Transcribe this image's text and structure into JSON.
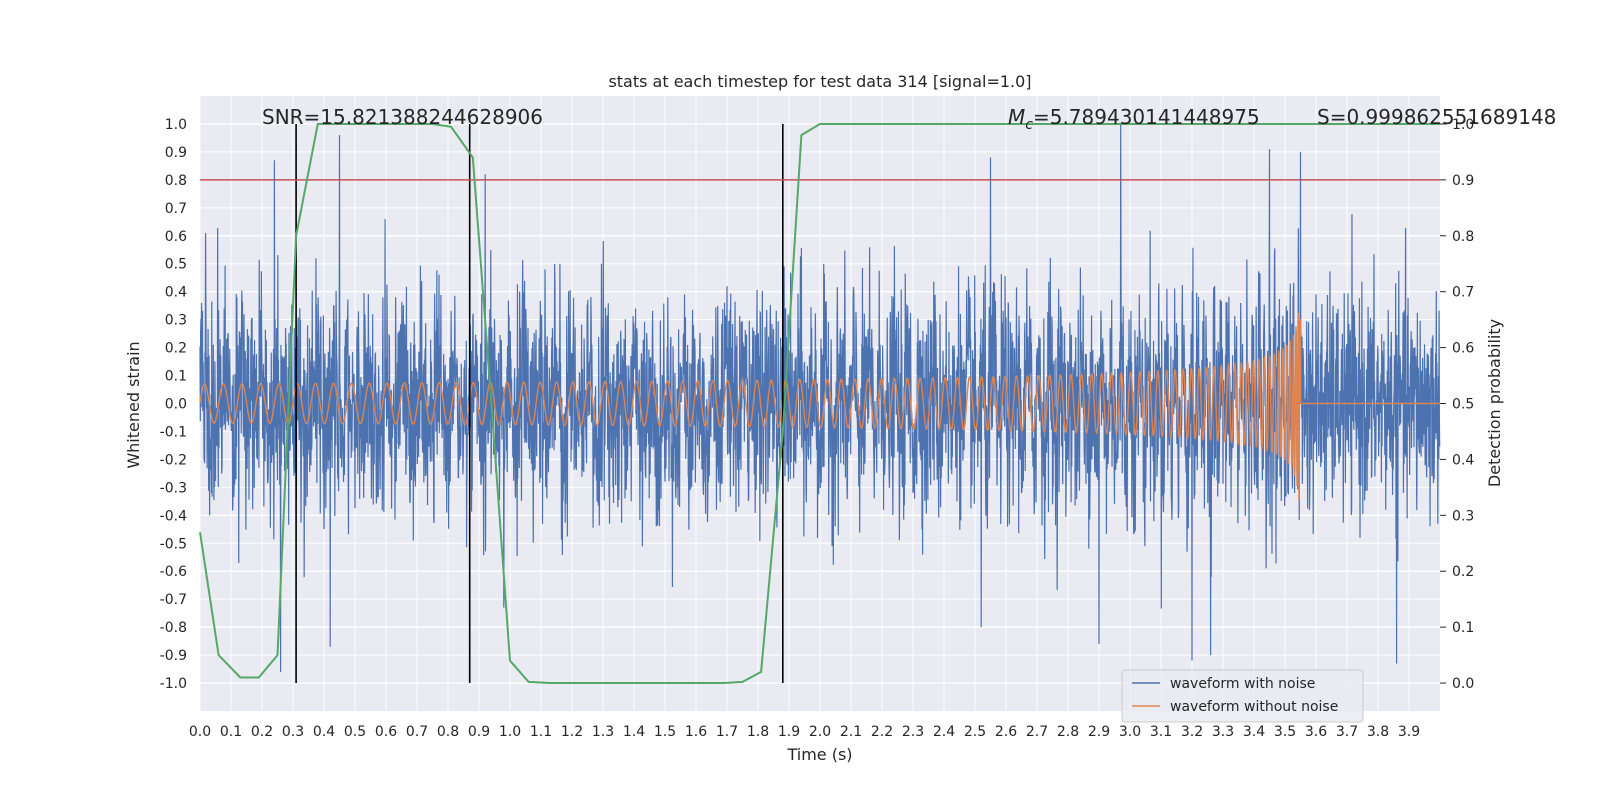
{
  "chart_data": {
    "type": "line",
    "title": "stats at each timestep for test data 314 [signal=1.0]",
    "xlabel": "Time (s)",
    "ylabel": "Whitened strain",
    "y2label": "Detection probability",
    "xlim": [
      0.0,
      4.0
    ],
    "ylim": [
      -1.1,
      1.1
    ],
    "y2lim": [
      -0.05,
      1.05
    ],
    "x_ticks": [
      0.0,
      0.1,
      0.2,
      0.3,
      0.4,
      0.5,
      0.6,
      0.7,
      0.8,
      0.9,
      1.0,
      1.1,
      1.2,
      1.3,
      1.4,
      1.5,
      1.6,
      1.7,
      1.8,
      1.9,
      2.0,
      2.1,
      2.2,
      2.3,
      2.4,
      2.5,
      2.6,
      2.7,
      2.8,
      2.9,
      3.0,
      3.1,
      3.2,
      3.3,
      3.4,
      3.5,
      3.6,
      3.7,
      3.8,
      3.9
    ],
    "y_ticks": [
      1.0,
      0.9,
      0.8,
      0.7,
      0.6,
      0.5,
      0.4,
      0.3,
      0.2,
      0.1,
      0.0,
      -0.1,
      -0.2,
      -0.3,
      -0.4,
      -0.5,
      -0.6,
      -0.7,
      -0.8,
      -0.9,
      -1.0
    ],
    "y2_ticks": [
      1.0,
      0.9,
      0.8,
      0.7,
      0.6,
      0.5,
      0.4,
      0.3,
      0.2,
      0.1,
      0.0
    ],
    "grid": true,
    "legend_position": "bottom-right",
    "annotations": {
      "snr": "SNR=15.821388244628906",
      "mc": "M_c=5.789430141448975",
      "mc_symbol": "M",
      "mc_sub": "c",
      "mc_value": "=5.789430141448975",
      "s": "S=0.999862551689148"
    },
    "threshold": {
      "axis": "right",
      "value": 0.9,
      "color": "#c44e52"
    },
    "vertical_markers": [
      0.31,
      0.87,
      1.88
    ],
    "series": [
      {
        "name": "waveform with noise",
        "axis": "left",
        "color": "#4c72b0",
        "kind": "noise",
        "std": 0.19,
        "peaks": [
          [
            0.24,
            0.87
          ],
          [
            0.26,
            -0.96
          ],
          [
            0.45,
            0.96
          ],
          [
            0.42,
            -0.87
          ],
          [
            0.92,
            0.82
          ],
          [
            0.98,
            -0.73
          ],
          [
            2.55,
            0.88
          ],
          [
            2.52,
            -0.8
          ],
          [
            2.97,
            1.0
          ],
          [
            2.9,
            -0.86
          ],
          [
            3.2,
            -0.92
          ],
          [
            3.26,
            -0.9
          ],
          [
            3.45,
            0.91
          ],
          [
            3.55,
            0.9
          ],
          [
            3.86,
            -0.93
          ]
        ]
      },
      {
        "name": "waveform without noise",
        "axis": "left",
        "color": "#dd8452",
        "kind": "chirp",
        "merger_time": 3.55,
        "peak_amplitude": 0.41
      },
      {
        "axis": "right",
        "color": "#55a868",
        "kind": "probability",
        "x": [
          0.0,
          0.06,
          0.13,
          0.19,
          0.25,
          0.31,
          0.38,
          0.44,
          0.5,
          0.56,
          0.63,
          0.69,
          0.75,
          0.81,
          0.88,
          0.94,
          1.0,
          1.06,
          1.13,
          1.19,
          1.25,
          1.31,
          1.38,
          1.44,
          1.5,
          1.56,
          1.63,
          1.69,
          1.75,
          1.81,
          1.88,
          1.94,
          2.0,
          2.06,
          2.13,
          2.19,
          2.25,
          2.31,
          2.38,
          2.44,
          2.5,
          2.56,
          2.63,
          2.69,
          2.75,
          2.81,
          2.88,
          2.94,
          3.0,
          3.06,
          3.13,
          3.19,
          3.25,
          3.31,
          3.38,
          3.44,
          3.5,
          3.56,
          3.63,
          3.69,
          3.75,
          3.81,
          3.88,
          3.94,
          4.0
        ],
        "values": [
          0.27,
          0.05,
          0.01,
          0.01,
          0.05,
          0.8,
          1.0,
          1.0,
          1.0,
          1.0,
          1.0,
          1.0,
          1.0,
          0.995,
          0.94,
          0.5,
          0.04,
          0.002,
          0.0,
          0.0,
          0.0,
          0.0,
          0.0,
          0.0,
          0.0,
          0.0,
          0.0,
          0.0,
          0.002,
          0.02,
          0.45,
          0.98,
          1.0,
          1.0,
          1.0,
          1.0,
          1.0,
          1.0,
          1.0,
          1.0,
          1.0,
          1.0,
          1.0,
          1.0,
          1.0,
          1.0,
          1.0,
          1.0,
          1.0,
          1.0,
          1.0,
          1.0,
          1.0,
          1.0,
          1.0,
          1.0,
          1.0,
          1.0,
          1.0,
          1.0,
          1.0,
          1.0,
          1.0,
          1.0,
          1.0
        ]
      }
    ]
  }
}
